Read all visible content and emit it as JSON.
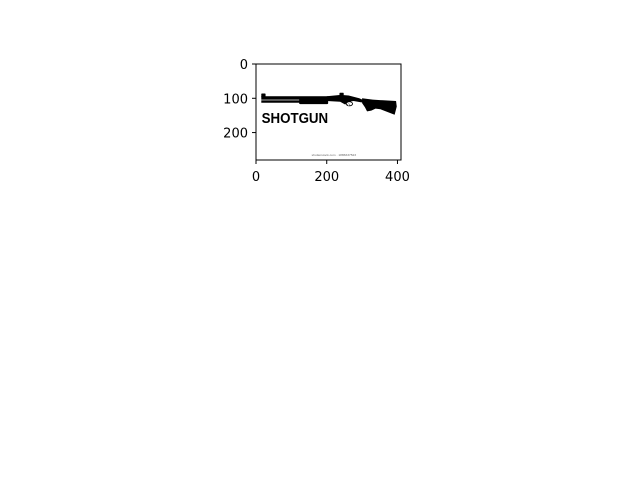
{
  "chart_data": {
    "type": "image",
    "title": "",
    "xlabel": "",
    "ylabel": "",
    "xlim": [
      0,
      410
    ],
    "ylim": [
      280,
      0
    ],
    "xticks": [
      0,
      200,
      400
    ],
    "yticks": [
      0,
      100,
      200
    ],
    "grid": false,
    "legend": "none",
    "image": {
      "caption": "SHOTGUN",
      "watermark": "shutterstock.com · 1886637523",
      "object": "shotgun-silhouette",
      "colors": {
        "silhouette": "#000000",
        "background": "#ffffff"
      }
    }
  }
}
